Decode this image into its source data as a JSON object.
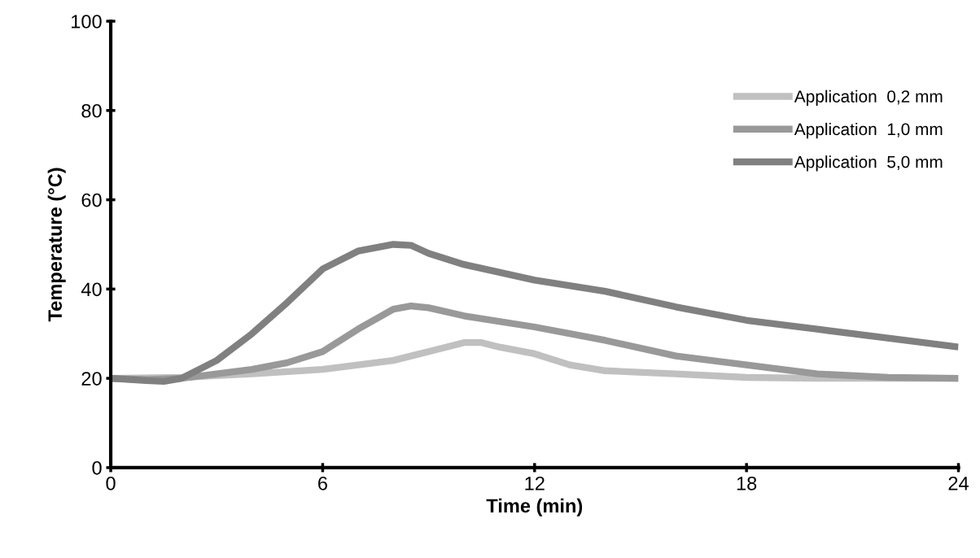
{
  "chart_data": {
    "type": "line",
    "xlabel": "Time (min)",
    "ylabel": "Temperature (°C)",
    "xlim": [
      0,
      24
    ],
    "xticks": [
      0,
      6,
      12,
      18,
      24
    ],
    "ylim": [
      0,
      100
    ],
    "yticks": [
      0,
      20,
      40,
      60,
      80,
      100
    ],
    "grid": false,
    "legend": "top right",
    "marker": "none",
    "line_style": "solid",
    "series": [
      {
        "name": "Application  0,2 mm",
        "color": "#c0c0c0",
        "x": [
          0,
          2,
          4,
          6,
          8,
          9,
          10,
          10.5,
          11,
          12,
          13,
          14,
          16,
          18,
          20,
          24
        ],
        "values": [
          20,
          20.2,
          21,
          22,
          24,
          26,
          28,
          28,
          27,
          25.5,
          23,
          21.7,
          21,
          20.2,
          20,
          20
        ]
      },
      {
        "name": "Application  1,0 mm",
        "color": "#999999",
        "x": [
          0,
          1,
          2,
          3,
          4,
          5,
          6,
          7,
          8,
          8.5,
          9,
          10,
          12,
          14,
          16,
          18,
          20,
          22,
          24
        ],
        "values": [
          20,
          19.7,
          20,
          21,
          22,
          23.5,
          26,
          31,
          35.5,
          36.2,
          35.8,
          34,
          31.5,
          28.5,
          25,
          23,
          21,
          20.2,
          20
        ]
      },
      {
        "name": "Application  5,0 mm",
        "color": "#808080",
        "x": [
          0,
          1,
          1.5,
          2,
          3,
          4,
          5,
          6,
          7,
          8,
          8.5,
          9,
          10,
          12,
          14,
          16,
          18,
          20,
          22,
          24
        ],
        "values": [
          20,
          19.5,
          19.3,
          20,
          24,
          30,
          37,
          44.5,
          48.5,
          50,
          49.8,
          48,
          45.5,
          42,
          39.5,
          36,
          33,
          31,
          29,
          27
        ]
      }
    ]
  }
}
